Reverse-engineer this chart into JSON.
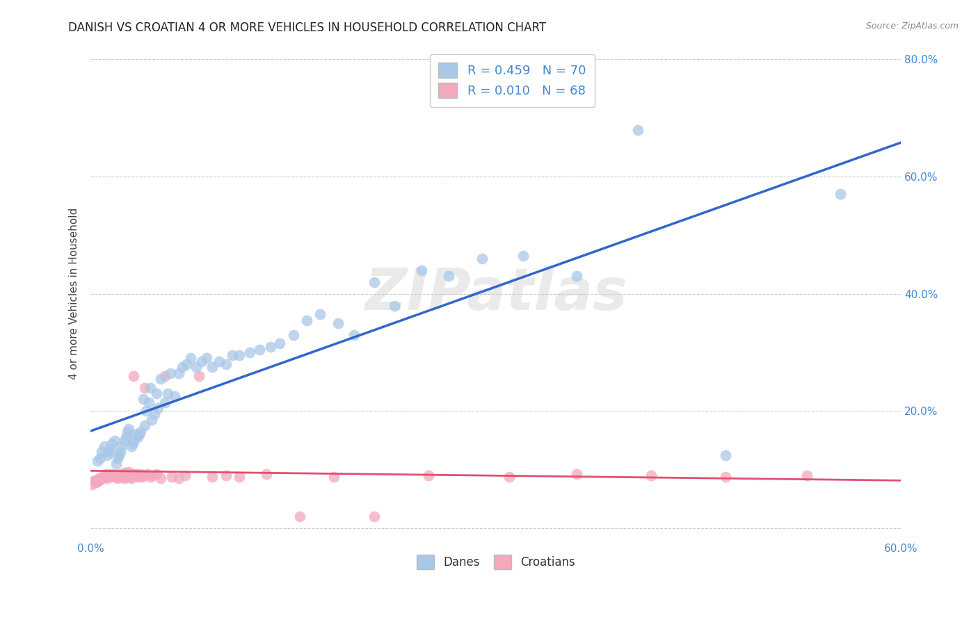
{
  "title": "DANISH VS CROATIAN 4 OR MORE VEHICLES IN HOUSEHOLD CORRELATION CHART",
  "source": "Source: ZipAtlas.com",
  "ylabel": "4 or more Vehicles in Household",
  "watermark": "ZIPatlas",
  "xlim": [
    0.0,
    0.6
  ],
  "ylim": [
    -0.02,
    0.82
  ],
  "xticks": [
    0.0,
    0.1,
    0.2,
    0.3,
    0.4,
    0.5,
    0.6
  ],
  "yticks": [
    0.0,
    0.2,
    0.4,
    0.6,
    0.8
  ],
  "xtick_labels": [
    "0.0%",
    "",
    "",
    "",
    "",
    "",
    "60.0%"
  ],
  "ytick_labels_right": [
    "",
    "20.0%",
    "40.0%",
    "60.0%",
    "80.0%"
  ],
  "danish_R": 0.459,
  "danish_N": 70,
  "croatian_R": 0.01,
  "croatian_N": 68,
  "danish_color": "#a8c8e8",
  "croatian_color": "#f4a8bc",
  "danish_line_color": "#3366cc",
  "croatian_line_color": "#e05070",
  "background_color": "#ffffff",
  "grid_color": "#cccccc",
  "title_fontsize": 12,
  "axis_label_fontsize": 11,
  "tick_fontsize": 11,
  "tick_color": "#4488cc",
  "danish_x": [
    0.005,
    0.007,
    0.008,
    0.01,
    0.012,
    0.013,
    0.015,
    0.016,
    0.018,
    0.019,
    0.02,
    0.021,
    0.022,
    0.023,
    0.025,
    0.026,
    0.027,
    0.028,
    0.03,
    0.031,
    0.032,
    0.033,
    0.035,
    0.036,
    0.037,
    0.039,
    0.04,
    0.041,
    0.043,
    0.044,
    0.045,
    0.047,
    0.049,
    0.05,
    0.052,
    0.055,
    0.057,
    0.059,
    0.062,
    0.065,
    0.068,
    0.071,
    0.074,
    0.078,
    0.082,
    0.086,
    0.09,
    0.095,
    0.1,
    0.105,
    0.11,
    0.118,
    0.125,
    0.133,
    0.14,
    0.15,
    0.16,
    0.17,
    0.183,
    0.195,
    0.21,
    0.225,
    0.245,
    0.265,
    0.29,
    0.32,
    0.36,
    0.405,
    0.47,
    0.555
  ],
  "danish_y": [
    0.115,
    0.12,
    0.13,
    0.14,
    0.125,
    0.13,
    0.135,
    0.145,
    0.15,
    0.11,
    0.12,
    0.125,
    0.13,
    0.14,
    0.15,
    0.155,
    0.165,
    0.17,
    0.14,
    0.145,
    0.15,
    0.16,
    0.155,
    0.16,
    0.165,
    0.22,
    0.175,
    0.2,
    0.215,
    0.24,
    0.185,
    0.195,
    0.23,
    0.205,
    0.255,
    0.215,
    0.23,
    0.265,
    0.225,
    0.265,
    0.275,
    0.28,
    0.29,
    0.275,
    0.285,
    0.29,
    0.275,
    0.285,
    0.28,
    0.295,
    0.295,
    0.3,
    0.305,
    0.31,
    0.315,
    0.33,
    0.355,
    0.365,
    0.35,
    0.33,
    0.42,
    0.38,
    0.44,
    0.43,
    0.46,
    0.465,
    0.43,
    0.68,
    0.125,
    0.57
  ],
  "croatian_x": [
    0.001,
    0.002,
    0.003,
    0.004,
    0.005,
    0.006,
    0.006,
    0.007,
    0.008,
    0.009,
    0.01,
    0.011,
    0.011,
    0.012,
    0.013,
    0.014,
    0.015,
    0.016,
    0.017,
    0.018,
    0.019,
    0.02,
    0.021,
    0.022,
    0.023,
    0.024,
    0.025,
    0.025,
    0.026,
    0.027,
    0.028,
    0.028,
    0.029,
    0.03,
    0.03,
    0.031,
    0.032,
    0.033,
    0.034,
    0.035,
    0.036,
    0.037,
    0.038,
    0.039,
    0.04,
    0.042,
    0.044,
    0.046,
    0.049,
    0.052,
    0.055,
    0.06,
    0.065,
    0.07,
    0.08,
    0.09,
    0.1,
    0.11,
    0.13,
    0.155,
    0.18,
    0.21,
    0.25,
    0.31,
    0.36,
    0.415,
    0.47,
    0.53
  ],
  "croatian_y": [
    0.075,
    0.08,
    0.082,
    0.078,
    0.08,
    0.082,
    0.085,
    0.083,
    0.087,
    0.088,
    0.09,
    0.092,
    0.088,
    0.085,
    0.09,
    0.092,
    0.088,
    0.09,
    0.092,
    0.088,
    0.09,
    0.085,
    0.092,
    0.088,
    0.09,
    0.092,
    0.085,
    0.095,
    0.088,
    0.09,
    0.092,
    0.096,
    0.088,
    0.09,
    0.085,
    0.092,
    0.26,
    0.09,
    0.092,
    0.088,
    0.09,
    0.092,
    0.088,
    0.09,
    0.24,
    0.092,
    0.088,
    0.09,
    0.092,
    0.085,
    0.26,
    0.088,
    0.085,
    0.09,
    0.26,
    0.088,
    0.09,
    0.088,
    0.092,
    0.02,
    0.088,
    0.02,
    0.09,
    0.088,
    0.092,
    0.09,
    0.088,
    0.09
  ]
}
